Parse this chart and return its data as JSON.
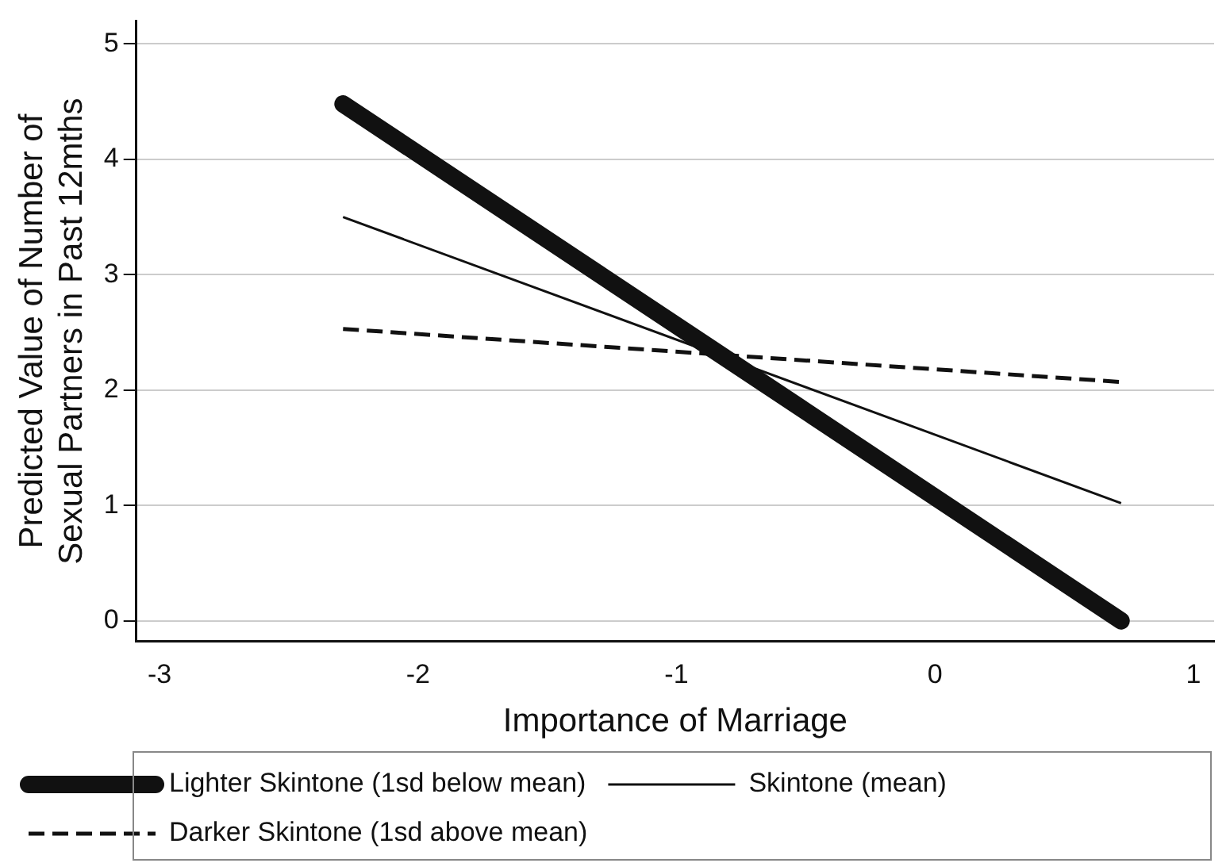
{
  "chart_data": {
    "type": "line",
    "xlabel": "Importance of Marriage",
    "ylabel": "Predicted Value of Number of Sexual Partners in Past 12mths",
    "x": [
      -2.29,
      0.72
    ],
    "series": [
      {
        "name": "Lighter Skintone (1sd below mean)",
        "color": "#111111",
        "values": [
          4.48,
          0
        ],
        "line_style": "solid"
      },
      {
        "name": "Skintone (mean)",
        "color": "#111111",
        "values": [
          3.5,
          1.02
        ],
        "line_style": "solid"
      },
      {
        "name": "Darker Skintone (1sd above mean)",
        "color": "#111111",
        "values": [
          2.53,
          2.07
        ],
        "line_style": "dashed"
      }
    ],
    "xlim": [
      -3.09,
      1.08
    ],
    "xticks": [
      -3,
      -2,
      -1,
      0,
      1
    ],
    "ylim": [
      -0.18,
      5.2
    ],
    "yticks": [
      0,
      1,
      2,
      3,
      4,
      5
    ],
    "grid": "y",
    "legend": "bottom",
    "marker": "none"
  }
}
